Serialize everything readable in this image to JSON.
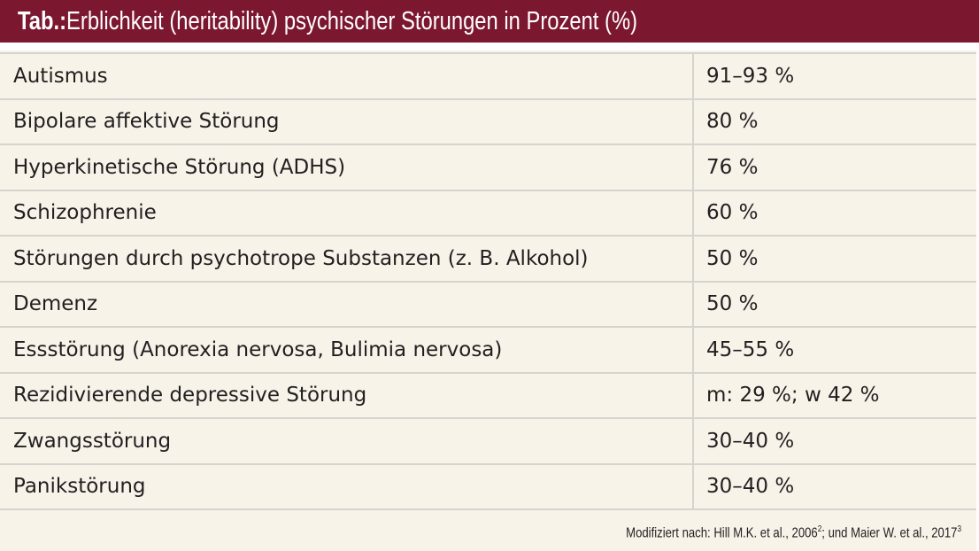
{
  "title": {
    "prefix": "Tab.:",
    "text": " Erblichkeit (heritability) psychischer Störungen in Prozent (%)"
  },
  "rows": [
    {
      "label": "Autismus",
      "value": "91–93 %"
    },
    {
      "label": "Bipolare affektive Störung",
      "value": "80 %"
    },
    {
      "label": "Hyperkinetische Störung (ADHS)",
      "value": "76 %"
    },
    {
      "label": "Schizophrenie",
      "value": "60 %"
    },
    {
      "label": "Störungen durch psychotrope Substanzen (z. B. Alkohol)",
      "value": "50 %"
    },
    {
      "label": "Demenz",
      "value": "50 %"
    },
    {
      "label": "Essstörung (Anorexia nervosa, Bulimia nervosa)",
      "value": "45–55 %"
    },
    {
      "label": "Rezidivierende depressive Störung",
      "value": "m: 29 %; w 42 %"
    },
    {
      "label": "Zwangsstörung",
      "value": "30–40 %"
    },
    {
      "label": "Panikstörung",
      "value": "30–40 %"
    }
  ],
  "footnote": {
    "part1": "Modifiziert nach: Hill M.K. et al., 2006",
    "sup1": "2",
    "part2": "; und Maier W. et al., 2017",
    "sup2": "3"
  }
}
